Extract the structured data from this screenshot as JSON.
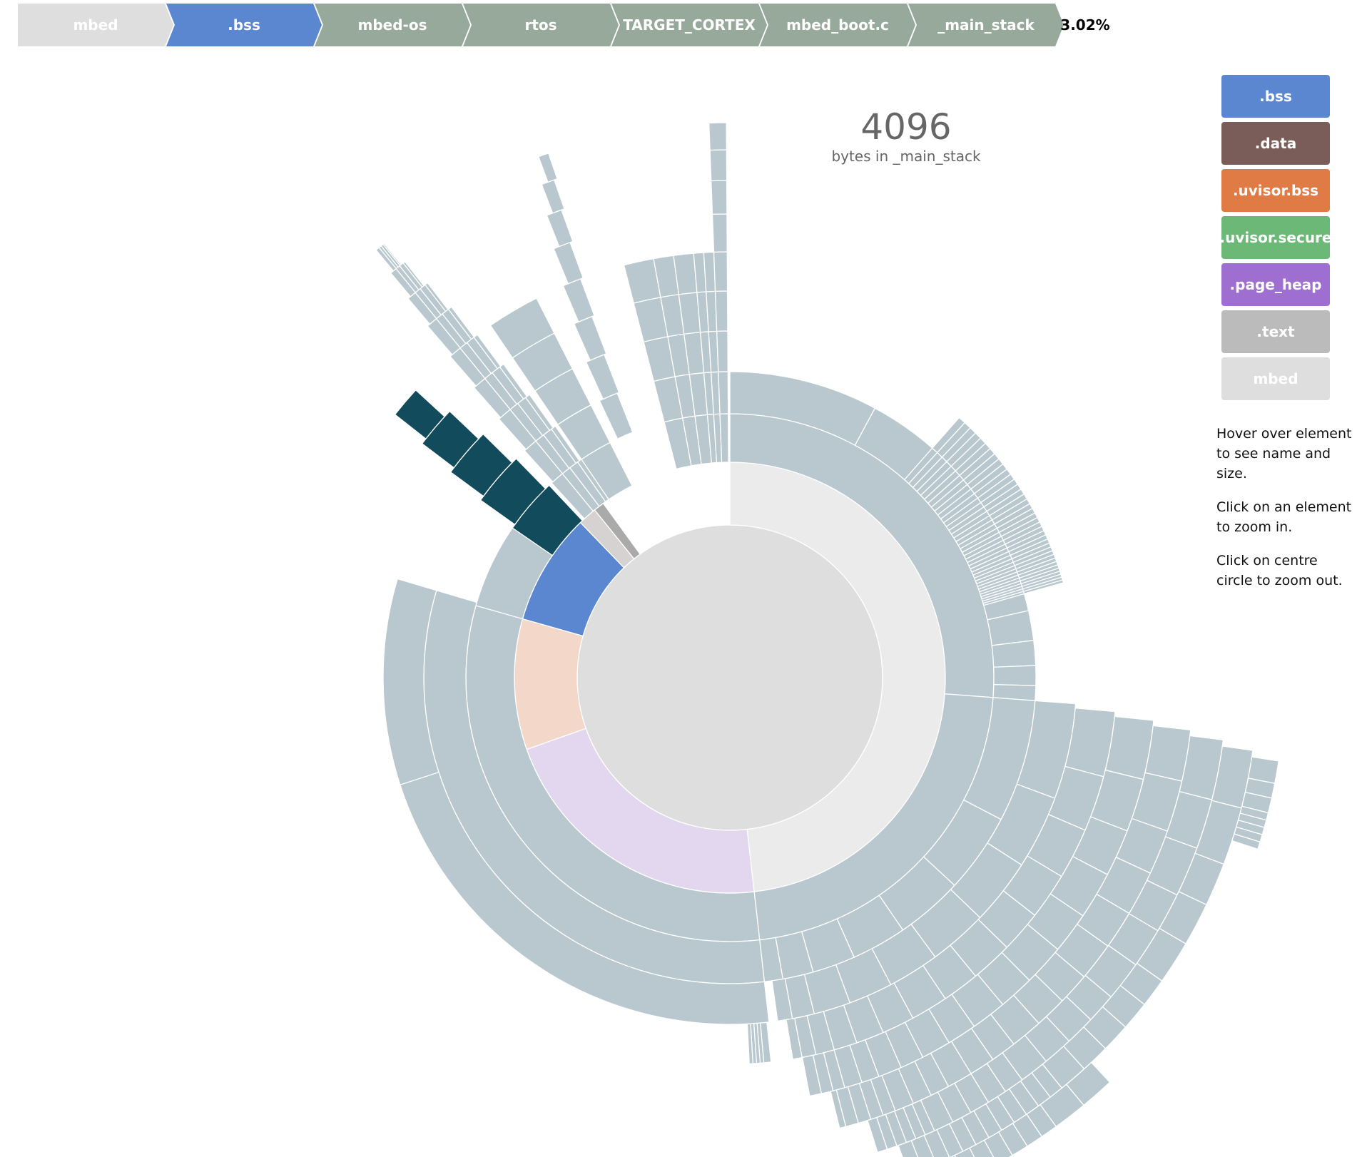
{
  "breadcrumb": {
    "items": [
      {
        "label": "mbed",
        "color": "#dedede"
      },
      {
        "label": ".bss",
        "color": "#5a87d0"
      },
      {
        "label": "mbed-os",
        "color": "#97a99a"
      },
      {
        "label": "rtos",
        "color": "#97a99a"
      },
      {
        "label": "TARGET_CORTEX",
        "color": "#97a99a"
      },
      {
        "label": "mbed_boot.c",
        "color": "#97a99a"
      },
      {
        "label": "_main_stack",
        "color": "#97a99a"
      }
    ],
    "percentage": "3.02%"
  },
  "explanation": {
    "value": "4096",
    "caption": "bytes in _main_stack"
  },
  "legend": [
    {
      "label": ".bss",
      "color": "#5a87d0"
    },
    {
      "label": ".data",
      "color": "#7a5c58"
    },
    {
      "label": ".uvisor.bss",
      "color": "#e07b45"
    },
    {
      "label": ".uvisor.secure",
      "color": "#6cb877"
    },
    {
      "label": ".page_heap",
      "color": "#9e6fd1"
    },
    {
      "label": ".text",
      "color": "#bbbbbb"
    },
    {
      "label": "mbed",
      "color": "#dedede"
    }
  ],
  "help": [
    "Hover over element to see name and size.",
    "Click on an element to zoom in.",
    "Click on centre circle to zoom out."
  ],
  "colors": {
    "root": "#dedede",
    "text_section": "#ebebeb",
    "page_heap": "#e3d6ef",
    "data_section": "#f3d7c8",
    "bss": "#5a87d0",
    "uvisor": "#d6d2d2",
    "small_gray": "#aaaaaa",
    "descendant": "#b8c8ce",
    "selected_path": "#124b5c"
  },
  "chart_data": {
    "type": "sunburst",
    "title": "",
    "value_unit": "bytes",
    "selected_path": [
      "mbed",
      ".bss",
      "mbed-os",
      "rtos",
      "TARGET_CORTEX",
      "mbed_boot.c",
      "_main_stack"
    ],
    "selected_value": 4096,
    "selected_percentage": "3.02%",
    "level1_share_of_total": [
      {
        "name": ".text",
        "share": 0.482
      },
      {
        "name": ".page_heap",
        "share": 0.214
      },
      {
        "name": ".data",
        "share": 0.098
      },
      {
        "name": ".bss",
        "share": 0.084
      },
      {
        "name": ".uvisor.bss",
        "share": 0.014
      },
      {
        "name": "other",
        "share": 0.008
      }
    ]
  }
}
